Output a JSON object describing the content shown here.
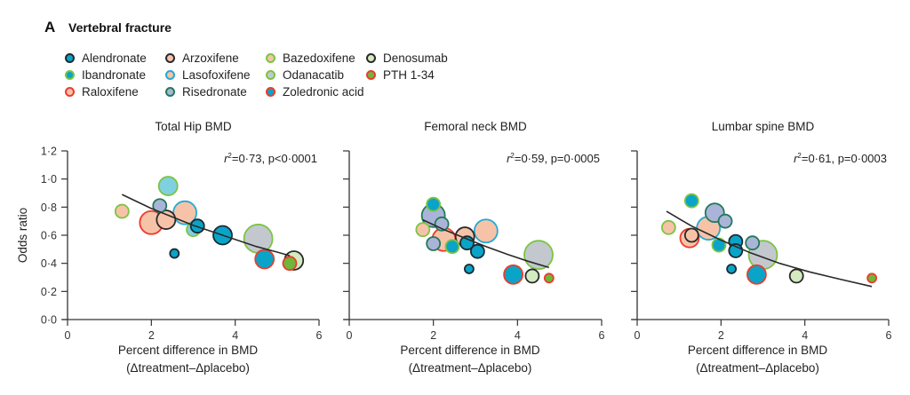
{
  "figure": {
    "panel_letter": "A",
    "heading": "Vertebral fracture"
  },
  "legend": {
    "items": [
      {
        "label": "Alendronate",
        "fill": "#0aa4c8",
        "stroke": "#1c2a30"
      },
      {
        "label": "Ibandronate",
        "fill": "#0aa4c8",
        "stroke": "#7cc444"
      },
      {
        "label": "Raloxifene",
        "fill": "#f7c3a8",
        "stroke": "#ee3b2c"
      },
      {
        "label": "Arzoxifene",
        "fill": "#f7c3a8",
        "stroke": "#2a2a2a"
      },
      {
        "label": "Lasofoxifene",
        "fill": "#f7c3a8",
        "stroke": "#24a9d6"
      },
      {
        "label": "Risedronate",
        "fill": "#aab4d8",
        "stroke": "#237a58"
      },
      {
        "label": "Bazedoxifene",
        "fill": "#f7c3a8",
        "stroke": "#7cc444"
      },
      {
        "label": "Odanacatib",
        "fill": "#c3c8cf",
        "stroke": "#7cc444"
      },
      {
        "label": "Zoledronic acid",
        "fill": "#0aa4c8",
        "stroke": "#ee3b2c"
      },
      {
        "label": "Denosumab",
        "fill": "#d4eac0",
        "stroke": "#2a2a2a"
      },
      {
        "label": "PTH 1-34",
        "fill": "#6fb63a",
        "stroke": "#ee3b2c"
      }
    ]
  },
  "chart_data": [
    {
      "type": "scatter",
      "title": "Total Hip BMD",
      "annotation": {
        "r2_prefix": "r",
        "r2_sup": "2",
        "text": "=0·73, p<0·0001"
      },
      "xlabel": "Percent difference in BMD",
      "xlabel2": "(Δtreatment–Δplacebo)",
      "ylabel": "Odds ratio",
      "xlim": [
        0,
        6
      ],
      "ylim": [
        0,
        1.2
      ],
      "xticks": [
        0,
        2,
        4,
        6
      ],
      "xtick_labels": [
        "0",
        "2",
        "4",
        "6"
      ],
      "yticks": [
        0,
        0.2,
        0.4,
        0.6,
        0.8,
        1.0,
        1.2
      ],
      "ytick_labels": [
        "0·0",
        "0·2",
        "0·4",
        "0·6",
        "0·8",
        "1·0",
        "1·2"
      ],
      "trend": {
        "x": [
          1.3,
          2.0,
          2.5,
          3.0,
          3.5,
          4.0,
          4.5,
          5.0,
          5.3
        ],
        "y": [
          0.89,
          0.79,
          0.73,
          0.67,
          0.62,
          0.57,
          0.52,
          0.48,
          0.455
        ]
      },
      "points": [
        {
          "drug": "Bazedoxifene",
          "x": 1.3,
          "y": 0.77,
          "size": "small"
        },
        {
          "drug": "Raloxifene",
          "x": 2.0,
          "y": 0.69,
          "size": "large"
        },
        {
          "drug": "Risedronate",
          "x": 2.2,
          "y": 0.81,
          "size": "small"
        },
        {
          "drug": "Arzoxifene",
          "x": 2.35,
          "y": 0.71,
          "size": "medium"
        },
        {
          "drug": "Ibandronate-Lasofoxifene",
          "x": 2.4,
          "y": 0.95,
          "size": "medium",
          "fill": "#7fd0e0",
          "stroke": "#7cc444"
        },
        {
          "drug": "Alendronate",
          "x": 2.55,
          "y": 0.47,
          "size": "tiny"
        },
        {
          "drug": "Lasofoxifene",
          "x": 2.8,
          "y": 0.76,
          "size": "large"
        },
        {
          "drug": "Ibandronate-light",
          "x": 3.0,
          "y": 0.64,
          "size": "small",
          "fill": "#7fd0e0",
          "stroke": "#7cc444"
        },
        {
          "drug": "Alendronate",
          "x": 3.1,
          "y": 0.665,
          "size": "small"
        },
        {
          "drug": "Alendronate",
          "x": 3.7,
          "y": 0.6,
          "size": "medium"
        },
        {
          "drug": "Odanacatib",
          "x": 4.55,
          "y": 0.575,
          "size": "xlarge"
        },
        {
          "drug": "Zoledronic acid",
          "x": 4.7,
          "y": 0.43,
          "size": "medium"
        },
        {
          "drug": "Denosumab",
          "x": 5.4,
          "y": 0.42,
          "size": "medium"
        },
        {
          "drug": "PTH 1-34",
          "x": 5.3,
          "y": 0.4,
          "size": "small"
        }
      ]
    },
    {
      "type": "scatter",
      "title": "Femoral neck BMD",
      "annotation": {
        "r2_prefix": "r",
        "r2_sup": "2",
        "text": "=0·59, p=0·0005"
      },
      "xlabel": "Percent difference in BMD",
      "xlabel2": "(Δtreatment–Δplacebo)",
      "ylabel": "",
      "xlim": [
        0,
        6
      ],
      "ylim": [
        0,
        1.2
      ],
      "xticks": [
        0,
        2,
        4,
        6
      ],
      "xtick_labels": [
        "0",
        "2",
        "4",
        "6"
      ],
      "yticks": [
        0,
        0.2,
        0.4,
        0.6,
        0.8,
        1.0,
        1.2
      ],
      "ytick_labels": [],
      "trend": {
        "x": [
          1.75,
          2.25,
          2.75,
          3.25,
          3.75,
          4.25,
          4.75
        ],
        "y": [
          0.71,
          0.64,
          0.58,
          0.52,
          0.465,
          0.415,
          0.37
        ]
      },
      "points": [
        {
          "drug": "Bazedoxifene",
          "x": 1.75,
          "y": 0.64,
          "size": "small"
        },
        {
          "drug": "Ibandronate",
          "x": 2.0,
          "y": 0.82,
          "size": "small"
        },
        {
          "drug": "Risedronate",
          "x": 2.0,
          "y": 0.74,
          "size": "large"
        },
        {
          "drug": "Risedronate",
          "x": 2.2,
          "y": 0.68,
          "size": "small"
        },
        {
          "drug": "Risedronate",
          "x": 2.0,
          "y": 0.54,
          "size": "small"
        },
        {
          "drug": "Raloxifene",
          "x": 2.25,
          "y": 0.57,
          "size": "large"
        },
        {
          "drug": "Ibandronate",
          "x": 2.45,
          "y": 0.52,
          "size": "small"
        },
        {
          "drug": "Arzoxifene",
          "x": 2.75,
          "y": 0.59,
          "size": "medium"
        },
        {
          "drug": "Alendronate",
          "x": 2.8,
          "y": 0.545,
          "size": "small"
        },
        {
          "drug": "Alendronate",
          "x": 2.85,
          "y": 0.36,
          "size": "tiny"
        },
        {
          "drug": "Alendronate",
          "x": 3.05,
          "y": 0.485,
          "size": "small"
        },
        {
          "drug": "Lasofoxifene",
          "x": 3.25,
          "y": 0.63,
          "size": "large"
        },
        {
          "drug": "Zoledronic acid",
          "x": 3.9,
          "y": 0.32,
          "size": "medium"
        },
        {
          "drug": "Odanacatib",
          "x": 4.5,
          "y": 0.46,
          "size": "xlarge"
        },
        {
          "drug": "Denosumab",
          "x": 4.35,
          "y": 0.31,
          "size": "small"
        },
        {
          "drug": "PTH 1-34",
          "x": 4.75,
          "y": 0.295,
          "size": "tiny"
        }
      ]
    },
    {
      "type": "scatter",
      "title": "Lumbar spine BMD",
      "annotation": {
        "r2_prefix": "r",
        "r2_sup": "2",
        "text": "=0·61, p=0·0003"
      },
      "xlabel": "Percent difference in BMD",
      "xlabel2": "(Δtreatment–Δplacebo)",
      "ylabel": "",
      "xlim": [
        0,
        6
      ],
      "ylim": [
        0,
        1.2
      ],
      "xticks": [
        0,
        2,
        4,
        6
      ],
      "xtick_labels": [
        "0",
        "2",
        "4",
        "6"
      ],
      "yticks": [
        0,
        0.2,
        0.4,
        0.6,
        0.8,
        1.0,
        1.2
      ],
      "ytick_labels": [],
      "trend": {
        "x": [
          0.7,
          1.3,
          2.0,
          2.7,
          3.4,
          4.1,
          4.8,
          5.6
        ],
        "y": [
          0.77,
          0.665,
          0.565,
          0.475,
          0.4,
          0.34,
          0.29,
          0.235
        ]
      },
      "points": [
        {
          "drug": "Bazedoxifene",
          "x": 0.75,
          "y": 0.655,
          "size": "small"
        },
        {
          "drug": "Raloxifene",
          "x": 1.25,
          "y": 0.58,
          "size": "medium"
        },
        {
          "drug": "Arzoxifene",
          "x": 1.3,
          "y": 0.6,
          "size": "small"
        },
        {
          "drug": "Ibandronate",
          "x": 1.3,
          "y": 0.845,
          "size": "small"
        },
        {
          "drug": "Lasofoxifene",
          "x": 1.7,
          "y": 0.65,
          "size": "large"
        },
        {
          "drug": "Risedronate",
          "x": 1.85,
          "y": 0.76,
          "size": "medium"
        },
        {
          "drug": "Risedronate",
          "x": 2.1,
          "y": 0.7,
          "size": "small"
        },
        {
          "drug": "Ibandronate",
          "x": 1.95,
          "y": 0.53,
          "size": "small"
        },
        {
          "drug": "Alendronate",
          "x": 2.35,
          "y": 0.555,
          "size": "small"
        },
        {
          "drug": "Alendronate",
          "x": 2.35,
          "y": 0.49,
          "size": "small"
        },
        {
          "drug": "Alendronate",
          "x": 2.25,
          "y": 0.36,
          "size": "tiny"
        },
        {
          "drug": "Risedronate",
          "x": 2.75,
          "y": 0.545,
          "size": "small"
        },
        {
          "drug": "Zoledronic acid",
          "x": 2.85,
          "y": 0.32,
          "size": "medium"
        },
        {
          "drug": "Odanacatib",
          "x": 3.0,
          "y": 0.46,
          "size": "xlarge"
        },
        {
          "drug": "Denosumab",
          "x": 3.8,
          "y": 0.31,
          "size": "small"
        },
        {
          "drug": "PTH 1-34",
          "x": 5.6,
          "y": 0.295,
          "size": "tiny"
        }
      ]
    }
  ]
}
